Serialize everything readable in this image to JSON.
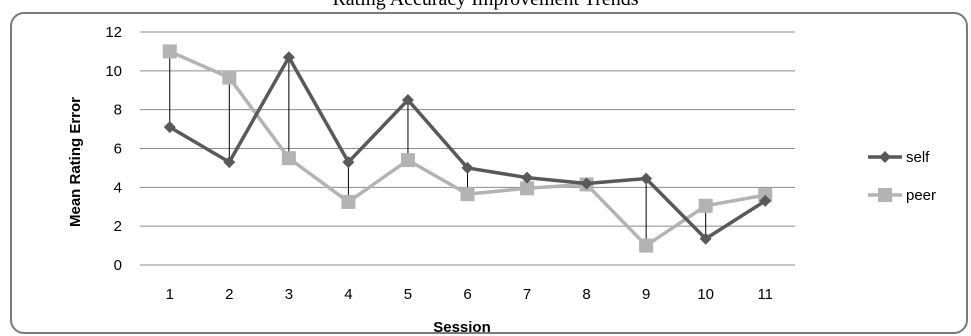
{
  "chart_data": {
    "type": "line",
    "title": "Rating Accuracy Improvement Trends",
    "xlabel": "Session",
    "ylabel": "Mean Rating Error",
    "categories": [
      "1",
      "2",
      "3",
      "4",
      "5",
      "6",
      "7",
      "8",
      "9",
      "10",
      "11"
    ],
    "ylim": [
      0,
      12
    ],
    "yticks": [
      0,
      2,
      4,
      6,
      8,
      10,
      12
    ],
    "grid": true,
    "legend_position": "right",
    "drop_lines": true,
    "series": [
      {
        "name": "self",
        "color": "#595959",
        "marker": "diamond",
        "values": [
          7.1,
          5.3,
          10.7,
          5.3,
          8.5,
          5.0,
          4.5,
          4.2,
          4.45,
          1.35,
          3.3
        ]
      },
      {
        "name": "peer",
        "color": "#b3b3b3",
        "marker": "square",
        "values": [
          11.0,
          9.65,
          5.5,
          3.25,
          5.4,
          3.65,
          3.95,
          4.15,
          1.0,
          3.05,
          3.6
        ]
      }
    ]
  }
}
